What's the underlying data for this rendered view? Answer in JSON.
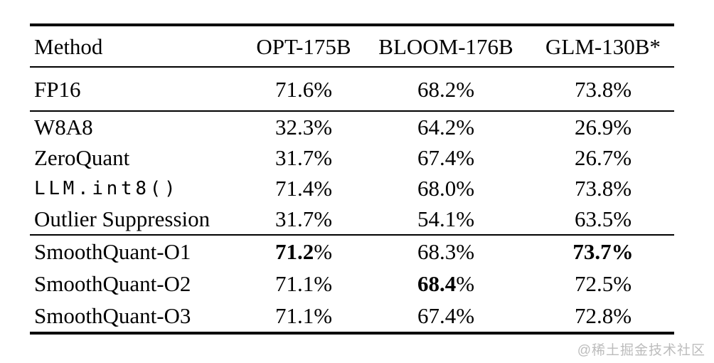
{
  "page": {
    "background": "#ffffff",
    "text_color": "#000000",
    "rule_color": "#000000"
  },
  "watermark": {
    "text": "@稀土掘金技术社区",
    "color": "#bcbcbc"
  },
  "table": {
    "percent_sign": "%",
    "columns": [
      {
        "label": "Method",
        "align": "left"
      },
      {
        "label": "OPT-175B",
        "align": "center"
      },
      {
        "label": "BLOOM-176B",
        "align": "center"
      },
      {
        "label": "GLM-130B*",
        "align": "center"
      }
    ],
    "sections": [
      {
        "name": "fp16-baseline",
        "rows": [
          {
            "method": {
              "text": "FP16",
              "mono": false
            },
            "values": [
              {
                "num": "71.6",
                "bold": false,
                "bold_pct": false
              },
              {
                "num": "68.2",
                "bold": false,
                "bold_pct": false
              },
              {
                "num": "73.8",
                "bold": false,
                "bold_pct": false
              }
            ]
          }
        ]
      },
      {
        "name": "int8-baselines",
        "rows": [
          {
            "method": {
              "text": "W8A8",
              "mono": false
            },
            "values": [
              {
                "num": "32.3",
                "bold": false,
                "bold_pct": false
              },
              {
                "num": "64.2",
                "bold": false,
                "bold_pct": false
              },
              {
                "num": "26.9",
                "bold": false,
                "bold_pct": false
              }
            ]
          },
          {
            "method": {
              "text": "ZeroQuant",
              "mono": false
            },
            "values": [
              {
                "num": "31.7",
                "bold": false,
                "bold_pct": false
              },
              {
                "num": "67.4",
                "bold": false,
                "bold_pct": false
              },
              {
                "num": "26.7",
                "bold": false,
                "bold_pct": false
              }
            ]
          },
          {
            "method": {
              "text": "LLM.int8()",
              "mono": true
            },
            "values": [
              {
                "num": "71.4",
                "bold": false,
                "bold_pct": false
              },
              {
                "num": "68.0",
                "bold": false,
                "bold_pct": false
              },
              {
                "num": "73.8",
                "bold": false,
                "bold_pct": false
              }
            ]
          },
          {
            "method": {
              "text": "Outlier Suppression",
              "mono": false
            },
            "values": [
              {
                "num": "31.7",
                "bold": false,
                "bold_pct": false
              },
              {
                "num": "54.1",
                "bold": false,
                "bold_pct": false
              },
              {
                "num": "63.5",
                "bold": false,
                "bold_pct": false
              }
            ]
          }
        ]
      },
      {
        "name": "smoothquant",
        "rows": [
          {
            "method": {
              "text": "SmoothQuant-O1",
              "mono": false
            },
            "values": [
              {
                "num": "71.2",
                "bold": true,
                "bold_pct": false
              },
              {
                "num": "68.3",
                "bold": false,
                "bold_pct": false
              },
              {
                "num": "73.7",
                "bold": true,
                "bold_pct": true
              }
            ]
          },
          {
            "method": {
              "text": "SmoothQuant-O2",
              "mono": false
            },
            "values": [
              {
                "num": "71.1",
                "bold": false,
                "bold_pct": false
              },
              {
                "num": "68.4",
                "bold": true,
                "bold_pct": false
              },
              {
                "num": "72.5",
                "bold": false,
                "bold_pct": false
              }
            ]
          },
          {
            "method": {
              "text": "SmoothQuant-O3",
              "mono": false
            },
            "values": [
              {
                "num": "71.1",
                "bold": false,
                "bold_pct": false
              },
              {
                "num": "67.4",
                "bold": false,
                "bold_pct": false
              },
              {
                "num": "72.8",
                "bold": false,
                "bold_pct": false
              }
            ]
          }
        ]
      }
    ]
  },
  "chart_data": {
    "type": "table",
    "columns": [
      "Method",
      "OPT-175B",
      "BLOOM-176B",
      "GLM-130B*"
    ],
    "rows": [
      [
        "FP16",
        "71.6%",
        "68.2%",
        "73.8%"
      ],
      [
        "W8A8",
        "32.3%",
        "64.2%",
        "26.9%"
      ],
      [
        "ZeroQuant",
        "31.7%",
        "67.4%",
        "26.7%"
      ],
      [
        "LLM.int8()",
        "71.4%",
        "68.0%",
        "73.8%"
      ],
      [
        "Outlier Suppression",
        "31.7%",
        "54.1%",
        "63.5%"
      ],
      [
        "SmoothQuant-O1",
        "71.2%",
        "68.3%",
        "73.7%"
      ],
      [
        "SmoothQuant-O2",
        "71.1%",
        "68.4%",
        "72.5%"
      ],
      [
        "SmoothQuant-O3",
        "71.1%",
        "67.4%",
        "72.8%"
      ]
    ],
    "bold_cells": [
      [
        "SmoothQuant-O1",
        "OPT-175B"
      ],
      [
        "SmoothQuant-O1",
        "GLM-130B*"
      ],
      [
        "SmoothQuant-O2",
        "BLOOM-176B"
      ]
    ]
  }
}
